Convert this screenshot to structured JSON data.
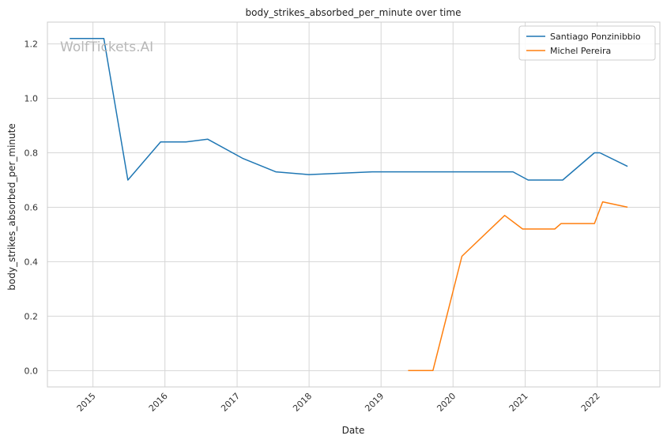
{
  "watermark": "WolfTickets.AI",
  "chart_data": {
    "type": "line",
    "title": "body_strikes_absorbed_per_minute over time",
    "xlabel": "Date",
    "ylabel": "body_strikes_absorbed_per_minute",
    "xlim": [
      "2014-05-15",
      "2022-11-15"
    ],
    "ylim": [
      -0.06,
      1.28
    ],
    "x_ticks": [
      "2015-01-01",
      "2016-01-01",
      "2017-01-01",
      "2018-01-01",
      "2019-01-01",
      "2020-01-01",
      "2021-01-01",
      "2022-01-01"
    ],
    "x_tick_labels": [
      "2015",
      "2016",
      "2017",
      "2018",
      "2019",
      "2020",
      "2021",
      "2022"
    ],
    "y_ticks": [
      0.0,
      0.2,
      0.4,
      0.6,
      0.8,
      1.0,
      1.2
    ],
    "y_tick_labels": [
      "0.0",
      "0.2",
      "0.4",
      "0.6",
      "0.8",
      "1.0",
      "1.2"
    ],
    "grid": true,
    "legend_position": "top-right",
    "series": [
      {
        "name": "Santiago Ponzinibbio",
        "color": "#1f77b4",
        "points": [
          [
            "2014-09-05",
            1.22
          ],
          [
            "2015-02-25",
            1.22
          ],
          [
            "2015-06-27",
            0.7
          ],
          [
            "2015-12-10",
            0.84
          ],
          [
            "2016-04-16",
            0.84
          ],
          [
            "2016-08-05",
            0.85
          ],
          [
            "2017-01-28",
            0.78
          ],
          [
            "2017-07-16",
            0.73
          ],
          [
            "2017-12-30",
            0.72
          ],
          [
            "2018-11-17",
            0.73
          ],
          [
            "2020-10-31",
            0.73
          ],
          [
            "2021-01-16",
            0.7
          ],
          [
            "2021-07-10",
            0.7
          ],
          [
            "2021-12-18",
            0.8
          ],
          [
            "2022-01-15",
            0.8
          ],
          [
            "2022-06-04",
            0.75
          ]
        ]
      },
      {
        "name": "Michel Pereira",
        "color": "#ff7f0e",
        "points": [
          [
            "2019-05-18",
            0.0
          ],
          [
            "2019-09-21",
            0.0
          ],
          [
            "2020-02-15",
            0.42
          ],
          [
            "2020-09-19",
            0.57
          ],
          [
            "2020-12-19",
            0.52
          ],
          [
            "2021-05-31",
            0.52
          ],
          [
            "2021-07-02",
            0.54
          ],
          [
            "2021-12-18",
            0.54
          ],
          [
            "2022-01-29",
            0.62
          ],
          [
            "2022-06-04",
            0.6
          ]
        ]
      }
    ]
  }
}
